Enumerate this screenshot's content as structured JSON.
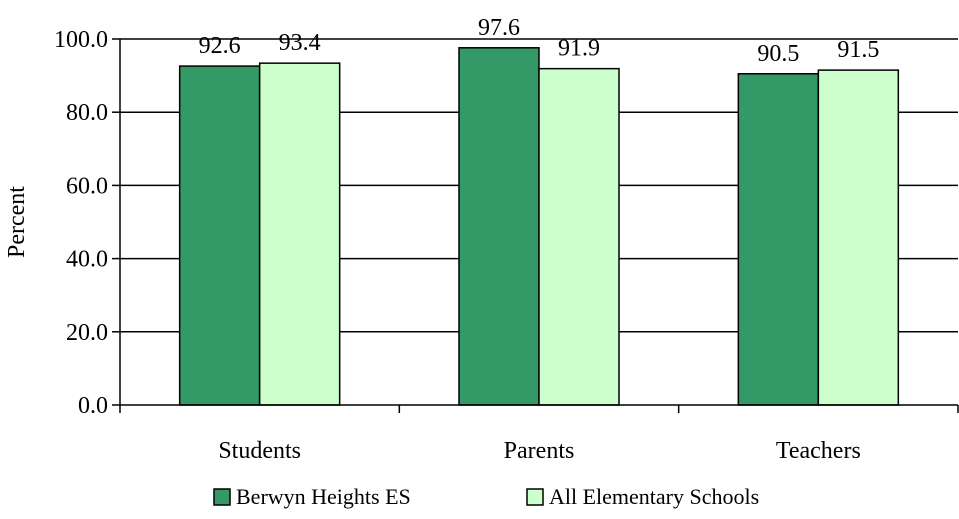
{
  "chart_data": {
    "type": "bar",
    "title": "",
    "xlabel": "",
    "ylabel": "Percent",
    "categories": [
      "Students",
      "Parents",
      "Teachers"
    ],
    "series": [
      {
        "name": "Berwyn Heights ES",
        "values": [
          92.6,
          97.6,
          90.5
        ],
        "color": "#339966"
      },
      {
        "name": "All Elementary Schools",
        "values": [
          93.4,
          91.9,
          91.5
        ],
        "color": "#ccffcc"
      }
    ],
    "value_labels": [
      [
        "92.6",
        "97.6",
        "90.5"
      ],
      [
        "93.4",
        "91.9",
        "91.5"
      ]
    ],
    "ylim": [
      0,
      100
    ],
    "yticks": [
      "0.0",
      "20.0",
      "40.0",
      "60.0",
      "80.0",
      "100.0"
    ],
    "grid": true,
    "legend_position": "bottom"
  }
}
